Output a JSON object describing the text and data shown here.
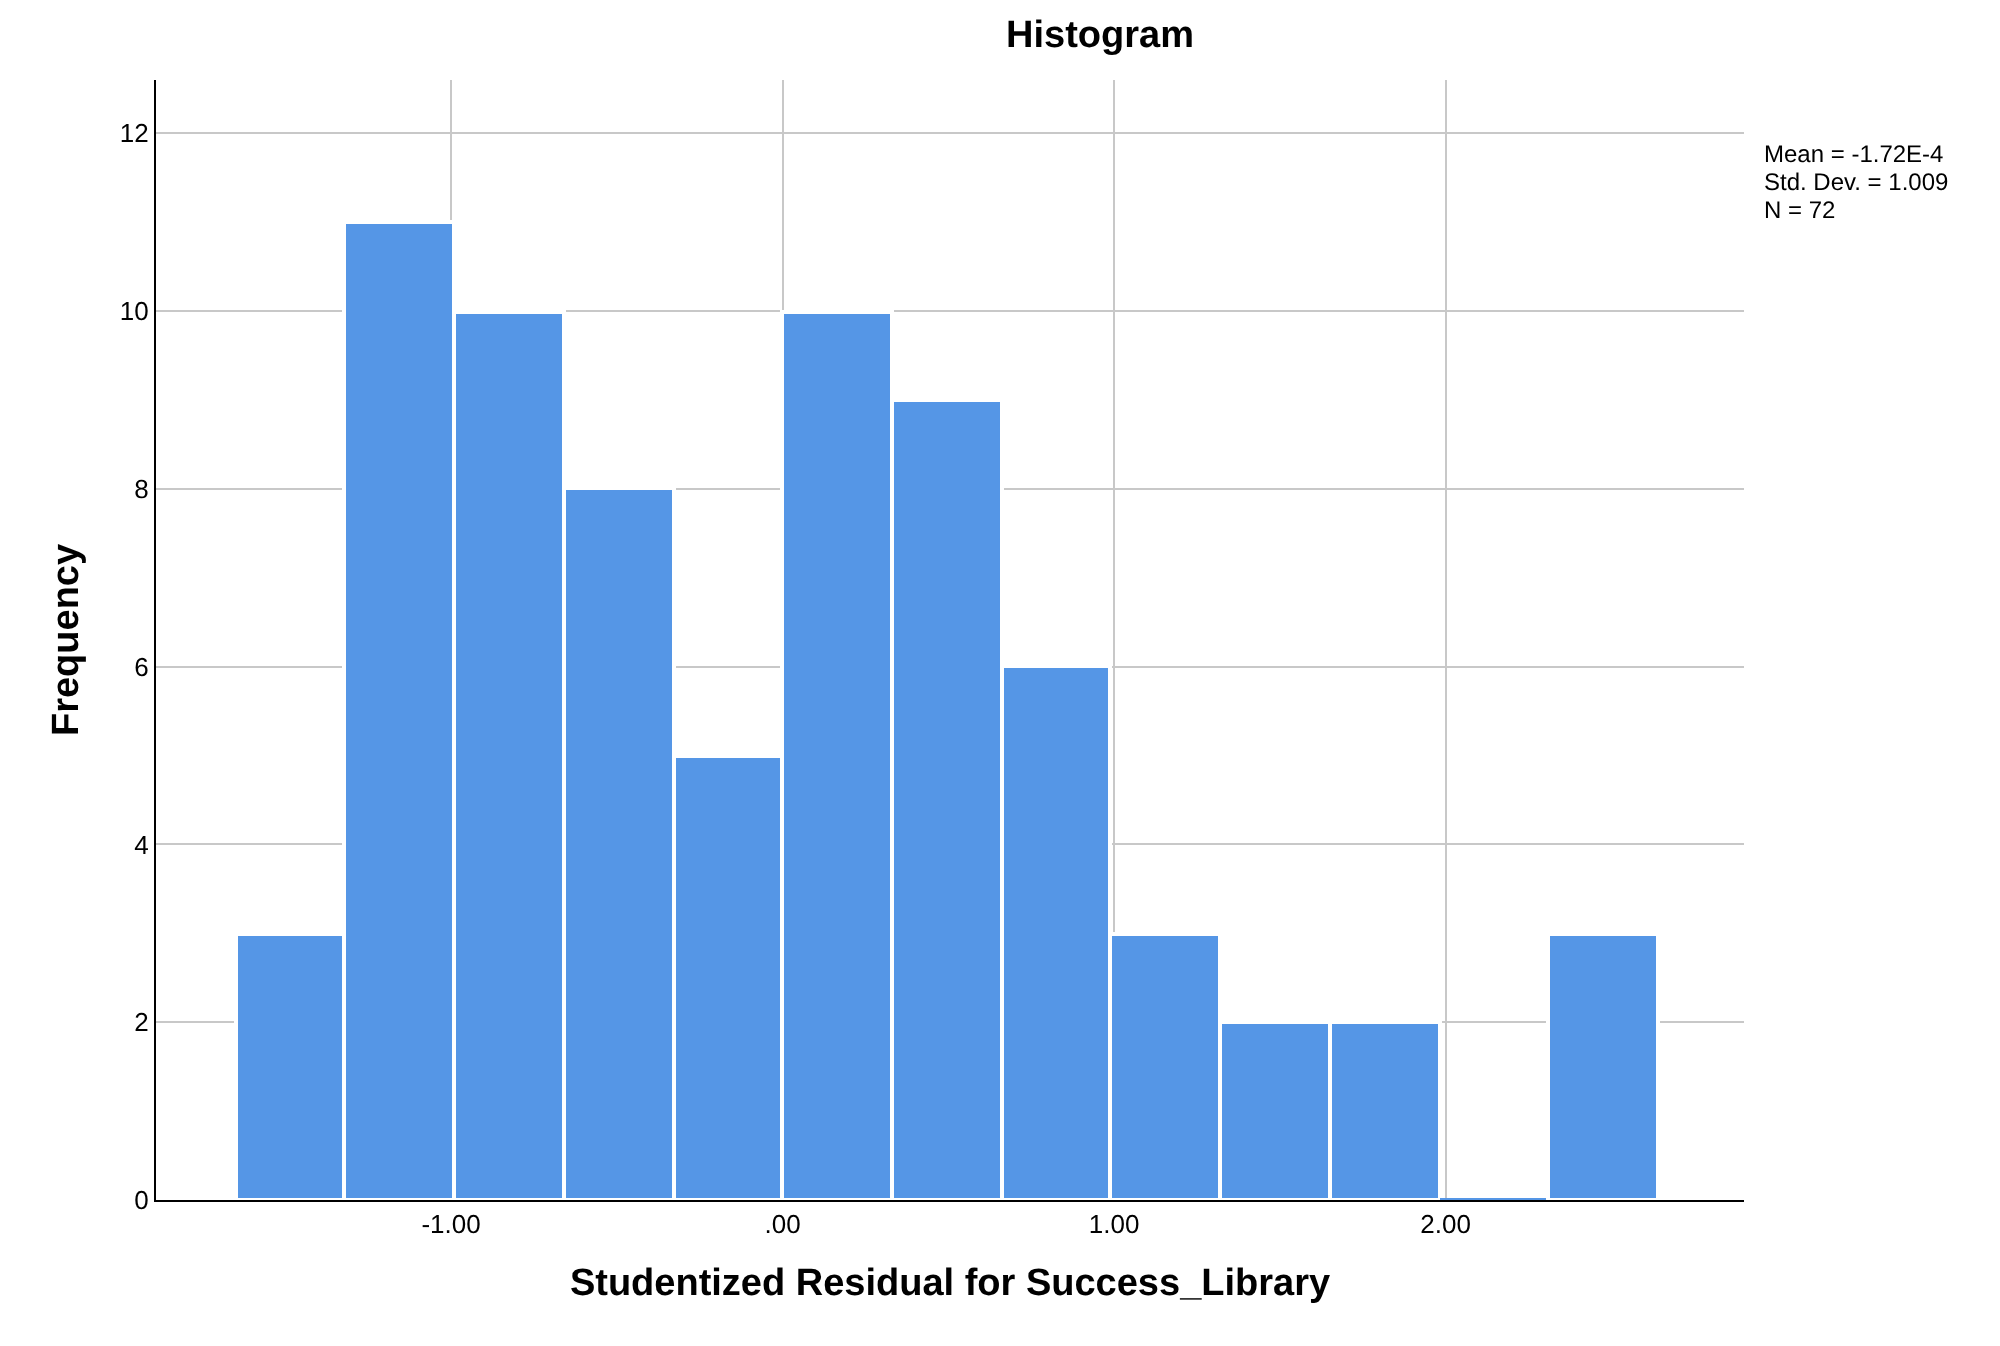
{
  "chart_data": {
    "type": "histogram",
    "title": "Histogram",
    "xlabel": "Studentized Residual for Success_Library",
    "ylabel": "Frequency",
    "bins": [
      -1.65,
      -1.32,
      -0.99,
      -0.66,
      -0.33,
      0.0,
      0.33,
      0.66,
      0.99,
      1.32,
      1.65,
      1.98,
      2.31,
      2.64
    ],
    "values": [
      3,
      11,
      10,
      8,
      5,
      10,
      9,
      6,
      3,
      2,
      2,
      0,
      3
    ],
    "color": "#5596e6",
    "xlim": [
      -1.89,
      2.9
    ],
    "ylim": [
      0,
      12.6
    ],
    "xticks": [
      {
        "value": -1,
        "label": "-1.00"
      },
      {
        "value": 0,
        "label": ".00"
      },
      {
        "value": 1,
        "label": "1.00"
      },
      {
        "value": 2,
        "label": "2.00"
      }
    ],
    "yticks": [
      0,
      2,
      4,
      6,
      8,
      10,
      12
    ],
    "grid": true,
    "annotations": [
      "Mean = -1.72E-4",
      "Std. Dev. = 1.009",
      "N = 72"
    ]
  }
}
